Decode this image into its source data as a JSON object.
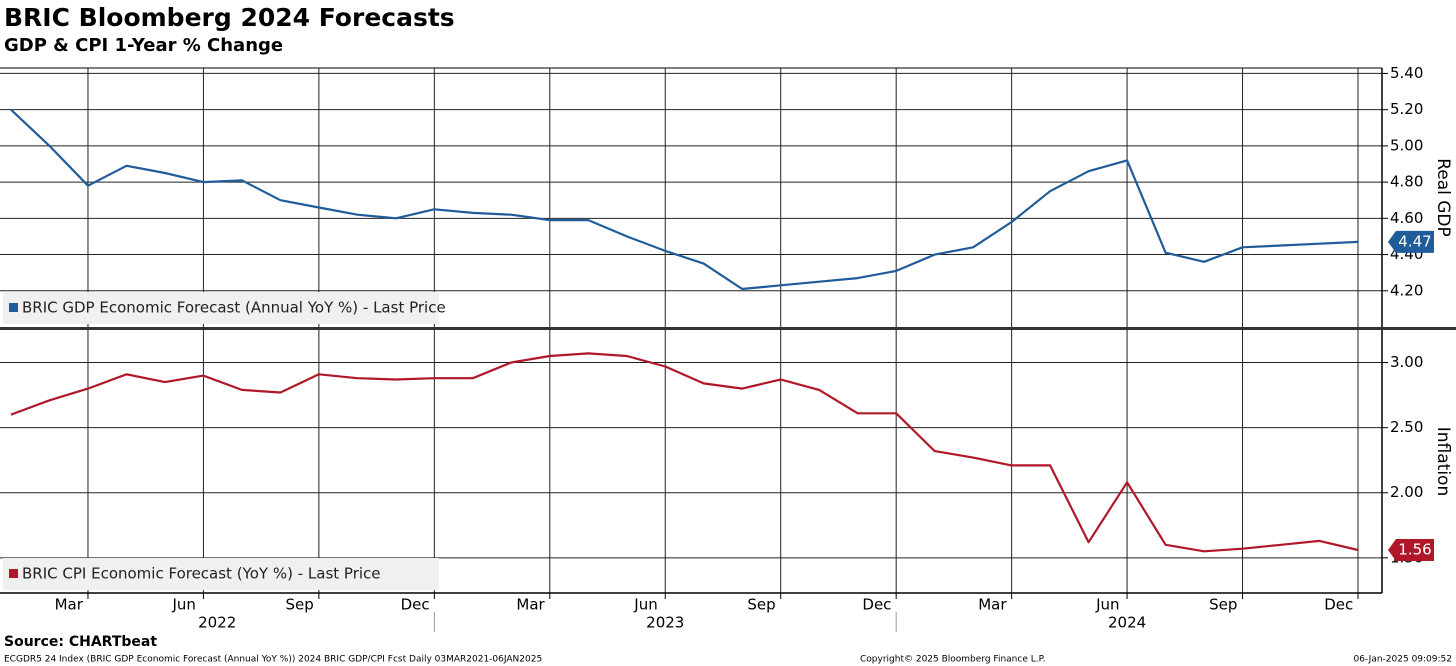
{
  "title": "BRIC Bloomberg 2024 Forecasts",
  "subtitle": "GDP & CPI 1-Year % Change",
  "chart_data": [
    {
      "type": "line",
      "axis_label": "Real GDP",
      "x": [
        "2022-02",
        "2022-03",
        "2022-04",
        "2022-05",
        "2022-06",
        "2022-07",
        "2022-08",
        "2022-09",
        "2022-10",
        "2022-11",
        "2022-12",
        "2023-01",
        "2023-02",
        "2023-03",
        "2023-04",
        "2023-05",
        "2023-06",
        "2023-07",
        "2023-08",
        "2023-09",
        "2023-10",
        "2023-11",
        "2023-12",
        "2024-01",
        "2024-02",
        "2024-03",
        "2024-04",
        "2024-05",
        "2024-06",
        "2024-07",
        "2024-08",
        "2024-09",
        "2024-10",
        "2024-11",
        "2024-12",
        "2025-01"
      ],
      "series": [
        {
          "name": "BRIC GDP Economic Forecast (Annual YoY %) - Last Price",
          "color": "#1f5c99",
          "values": [
            5.2,
            5.0,
            4.78,
            4.89,
            4.85,
            4.8,
            4.81,
            4.7,
            4.66,
            4.62,
            4.6,
            4.65,
            4.63,
            4.62,
            4.59,
            4.59,
            4.5,
            4.42,
            4.35,
            4.21,
            4.23,
            4.25,
            4.27,
            4.31,
            4.4,
            4.44,
            4.58,
            4.75,
            4.86,
            4.92,
            4.41,
            4.36,
            4.44,
            4.45,
            4.46,
            4.47
          ]
        }
      ],
      "last_value": 4.47,
      "xlim": [
        "2022-02",
        "2025-01"
      ],
      "ylim": [
        4.0,
        5.43
      ],
      "yticks": [
        {
          "value": 4.2,
          "label": "4.20"
        },
        {
          "value": 4.4,
          "label": "4.40"
        },
        {
          "value": 4.6,
          "label": "4.60"
        },
        {
          "value": 4.8,
          "label": "4.80"
        },
        {
          "value": 5.0,
          "label": "5.00"
        },
        {
          "value": 5.2,
          "label": "5.20"
        },
        {
          "value": 5.4,
          "label": "5.40"
        }
      ],
      "grid": true
    },
    {
      "type": "line",
      "axis_label": "Inflation",
      "x": [
        "2022-02",
        "2022-03",
        "2022-04",
        "2022-05",
        "2022-06",
        "2022-07",
        "2022-08",
        "2022-09",
        "2022-10",
        "2022-11",
        "2022-12",
        "2023-01",
        "2023-02",
        "2023-03",
        "2023-04",
        "2023-05",
        "2023-06",
        "2023-07",
        "2023-08",
        "2023-09",
        "2023-10",
        "2023-11",
        "2023-12",
        "2024-01",
        "2024-02",
        "2024-03",
        "2024-04",
        "2024-05",
        "2024-06",
        "2024-07",
        "2024-08",
        "2024-09",
        "2024-10",
        "2024-11",
        "2024-12",
        "2025-01"
      ],
      "series": [
        {
          "name": "BRIC CPI Economic Forecast (YoY %) - Last Price",
          "color": "#b0182a",
          "values": [
            2.6,
            2.71,
            2.8,
            2.91,
            2.85,
            2.9,
            2.79,
            2.77,
            2.91,
            2.88,
            2.87,
            2.88,
            2.88,
            3.0,
            3.05,
            3.07,
            3.05,
            2.97,
            2.84,
            2.8,
            2.87,
            2.79,
            2.61,
            2.61,
            2.32,
            2.27,
            2.21,
            2.21,
            1.62,
            2.08,
            1.6,
            1.55,
            1.57,
            1.6,
            1.63,
            1.56
          ]
        }
      ],
      "last_value": 1.56,
      "xlim": [
        "2022-02",
        "2025-01"
      ],
      "ylim": [
        1.23,
        3.25
      ],
      "yticks": [
        {
          "value": 1.5,
          "label": "1.50"
        },
        {
          "value": 2.0,
          "label": "2.00"
        },
        {
          "value": 2.5,
          "label": "2.50"
        },
        {
          "value": 3.0,
          "label": "3.00"
        }
      ],
      "xticks": [
        {
          "value": "2022-03",
          "label": "Mar"
        },
        {
          "value": "2022-06",
          "label": "Jun"
        },
        {
          "value": "2022-09",
          "label": "Sep"
        },
        {
          "value": "2022-12",
          "label": "Dec"
        },
        {
          "value": "2023-03",
          "label": "Mar"
        },
        {
          "value": "2023-06",
          "label": "Jun"
        },
        {
          "value": "2023-09",
          "label": "Sep"
        },
        {
          "value": "2023-12",
          "label": "Dec"
        },
        {
          "value": "2024-03",
          "label": "Mar"
        },
        {
          "value": "2024-06",
          "label": "Jun"
        },
        {
          "value": "2024-09",
          "label": "Sep"
        },
        {
          "value": "2024-12",
          "label": "Dec"
        }
      ],
      "years": [
        "2022",
        "2023",
        "2024"
      ],
      "grid": true
    }
  ],
  "footer": {
    "source": "Source: CHARTbeat",
    "ticker": "ECGDR5 24 Index (BRIC GDP Economic Forecast (Annual YoY %)) 2024 BRIC GDP/CPI Fcst  Daily 03MAR2021-06JAN2025",
    "copyright": "Copyright© 2025 Bloomberg Finance L.P.",
    "timestamp": "06-Jan-2025 09:09:52"
  }
}
